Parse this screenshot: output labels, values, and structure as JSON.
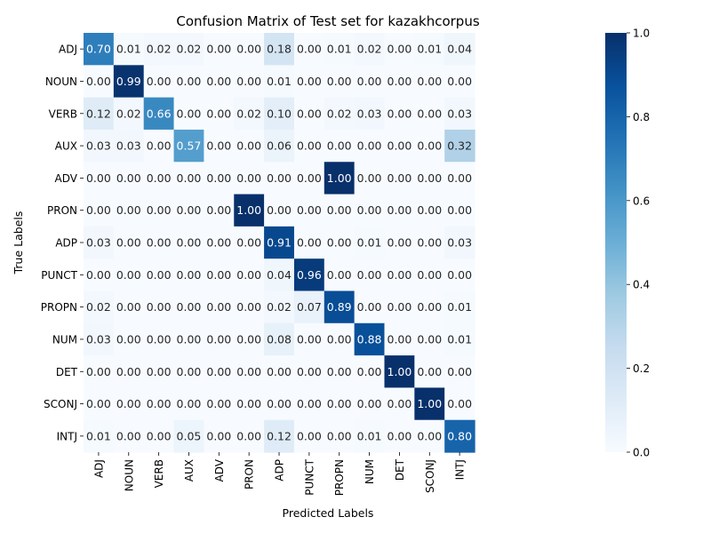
{
  "chart_data": {
    "type": "heatmap",
    "title": "Confusion Matrix of Test set for kazakhcorpus",
    "xlabel": "Predicted Labels",
    "ylabel": "True Labels",
    "row_labels": [
      "ADJ",
      "NOUN",
      "VERB",
      "AUX",
      "ADV",
      "PRON",
      "ADP",
      "PUNCT",
      "PROPN",
      "NUM",
      "DET",
      "SCONJ",
      "INTJ"
    ],
    "col_labels": [
      "ADJ",
      "NOUN",
      "VERB",
      "AUX",
      "ADV",
      "PRON",
      "ADP",
      "PUNCT",
      "PROPN",
      "NUM",
      "DET",
      "SCONJ",
      "INTJ"
    ],
    "values": [
      [
        0.7,
        0.01,
        0.02,
        0.02,
        0.0,
        0.0,
        0.18,
        0.0,
        0.01,
        0.02,
        0.0,
        0.01,
        0.04
      ],
      [
        0.0,
        0.99,
        0.0,
        0.0,
        0.0,
        0.0,
        0.01,
        0.0,
        0.0,
        0.0,
        0.0,
        0.0,
        0.0
      ],
      [
        0.12,
        0.02,
        0.66,
        0.0,
        0.0,
        0.02,
        0.1,
        0.0,
        0.02,
        0.03,
        0.0,
        0.0,
        0.03
      ],
      [
        0.03,
        0.03,
        0.0,
        0.57,
        0.0,
        0.0,
        0.06,
        0.0,
        0.0,
        0.0,
        0.0,
        0.0,
        0.32
      ],
      [
        0.0,
        0.0,
        0.0,
        0.0,
        0.0,
        0.0,
        0.0,
        0.0,
        1.0,
        0.0,
        0.0,
        0.0,
        0.0
      ],
      [
        0.0,
        0.0,
        0.0,
        0.0,
        0.0,
        1.0,
        0.0,
        0.0,
        0.0,
        0.0,
        0.0,
        0.0,
        0.0
      ],
      [
        0.03,
        0.0,
        0.0,
        0.0,
        0.0,
        0.0,
        0.91,
        0.0,
        0.0,
        0.01,
        0.0,
        0.0,
        0.03
      ],
      [
        0.0,
        0.0,
        0.0,
        0.0,
        0.0,
        0.0,
        0.04,
        0.96,
        0.0,
        0.0,
        0.0,
        0.0,
        0.0
      ],
      [
        0.02,
        0.0,
        0.0,
        0.0,
        0.0,
        0.0,
        0.02,
        0.07,
        0.89,
        0.0,
        0.0,
        0.0,
        0.01
      ],
      [
        0.03,
        0.0,
        0.0,
        0.0,
        0.0,
        0.0,
        0.08,
        0.0,
        0.0,
        0.88,
        0.0,
        0.0,
        0.01
      ],
      [
        0.0,
        0.0,
        0.0,
        0.0,
        0.0,
        0.0,
        0.0,
        0.0,
        0.0,
        0.0,
        1.0,
        0.0,
        0.0
      ],
      [
        0.0,
        0.0,
        0.0,
        0.0,
        0.0,
        0.0,
        0.0,
        0.0,
        0.0,
        0.0,
        0.0,
        1.0,
        0.0
      ],
      [
        0.01,
        0.0,
        0.0,
        0.05,
        0.0,
        0.0,
        0.12,
        0.0,
        0.0,
        0.01,
        0.0,
        0.0,
        0.8
      ]
    ],
    "colormap": "Blues",
    "colorbar": {
      "range": [
        0.0,
        1.0
      ],
      "ticks": [
        "0.0",
        "0.2",
        "0.4",
        "0.6",
        "0.8",
        "1.0"
      ]
    }
  }
}
